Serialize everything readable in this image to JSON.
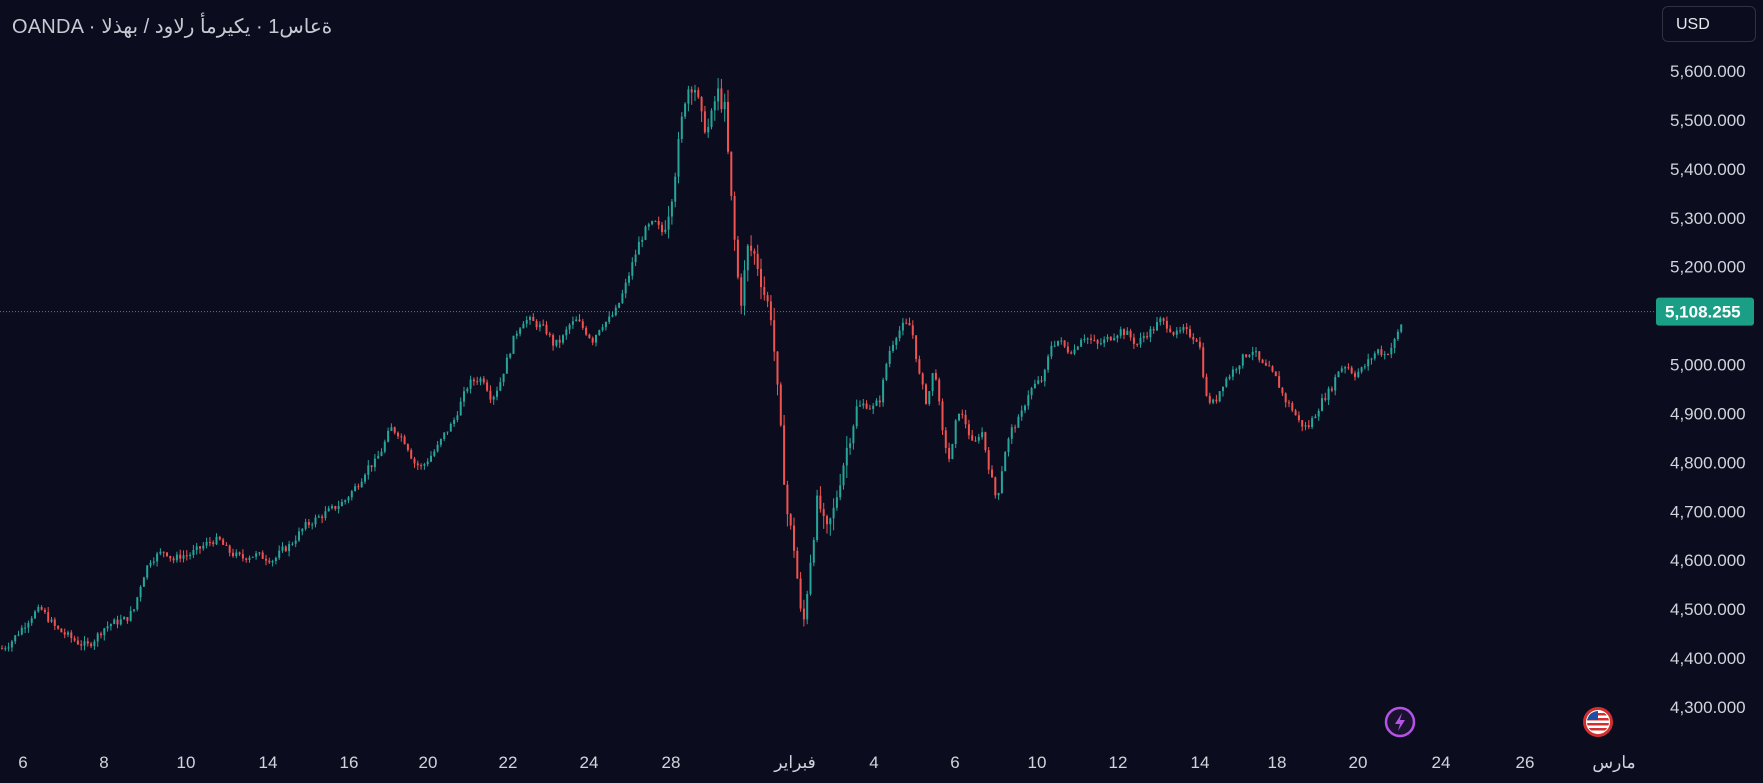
{
  "header": {
    "symbol_line": "OANDA · ةعاس1 · يكيرمأ رلاود / بهذلا"
  },
  "currency_button": {
    "label": "USD"
  },
  "icons": {
    "lightning": "lightning-icon",
    "flag": "us-flag-icon"
  },
  "colors": {
    "background": "#0c0c1f",
    "up": "#26a69a",
    "down": "#ef5350",
    "price_tag": "#1b9e86"
  },
  "chart_data": {
    "type": "candlestick",
    "title": "",
    "ylim": [
      4250,
      5650
    ],
    "y_ticks": [
      {
        "value": 5600,
        "label": "5,600.000"
      },
      {
        "value": 5500,
        "label": "5,500.000"
      },
      {
        "value": 5400,
        "label": "5,400.000"
      },
      {
        "value": 5300,
        "label": "5,300.000"
      },
      {
        "value": 5200,
        "label": "5,200.000"
      },
      {
        "value": 5000,
        "label": "5,000.000"
      },
      {
        "value": 4900,
        "label": "4,900.000"
      },
      {
        "value": 4800,
        "label": "4,800.000"
      },
      {
        "value": 4700,
        "label": "4,700.000"
      },
      {
        "value": 4600,
        "label": "4,600.000"
      },
      {
        "value": 4500,
        "label": "4,500.000"
      },
      {
        "value": 4400,
        "label": "4,400.000"
      },
      {
        "value": 4300,
        "label": "4,300.000"
      }
    ],
    "x_ticks": [
      "6",
      "8",
      "10",
      "14",
      "16",
      "20",
      "22",
      "24",
      "28",
      "فبراير",
      "4",
      "6",
      "10",
      "12",
      "14",
      "18",
      "20",
      "24",
      "26",
      "مارس"
    ],
    "last_price": {
      "value": 5108.255,
      "label": "5,108.255"
    },
    "grid": false,
    "price_path": [
      [
        0,
        4420
      ],
      [
        10,
        4430
      ],
      [
        20,
        4450
      ],
      [
        30,
        4470
      ],
      [
        40,
        4490
      ],
      [
        50,
        4500
      ],
      [
        60,
        4480
      ],
      [
        70,
        4460
      ],
      [
        80,
        4450
      ],
      [
        90,
        4440
      ],
      [
        100,
        4430
      ],
      [
        110,
        4425
      ],
      [
        120,
        4440
      ],
      [
        130,
        4460
      ],
      [
        140,
        4470
      ],
      [
        150,
        4475
      ],
      [
        160,
        4480
      ],
      [
        170,
        4500
      ],
      [
        180,
        4560
      ],
      [
        190,
        4600
      ],
      [
        200,
        4610
      ],
      [
        210,
        4620
      ],
      [
        220,
        4600
      ],
      [
        230,
        4610
      ],
      [
        240,
        4610
      ],
      [
        250,
        4620
      ],
      [
        260,
        4630
      ],
      [
        270,
        4640
      ],
      [
        280,
        4640
      ],
      [
        290,
        4620
      ],
      [
        300,
        4610
      ],
      [
        310,
        4605
      ],
      [
        320,
        4610
      ],
      [
        330,
        4610
      ],
      [
        340,
        4605
      ],
      [
        350,
        4600
      ],
      [
        360,
        4620
      ],
      [
        370,
        4630
      ],
      [
        380,
        4650
      ],
      [
        390,
        4670
      ],
      [
        400,
        4680
      ],
      [
        410,
        4690
      ],
      [
        420,
        4700
      ],
      [
        430,
        4710
      ],
      [
        440,
        4720
      ],
      [
        450,
        4740
      ],
      [
        460,
        4760
      ],
      [
        470,
        4790
      ],
      [
        480,
        4800
      ],
      [
        490,
        4830
      ],
      [
        500,
        4870
      ],
      [
        510,
        4860
      ],
      [
        520,
        4840
      ],
      [
        530,
        4800
      ],
      [
        540,
        4790
      ],
      [
        550,
        4810
      ],
      [
        560,
        4830
      ],
      [
        570,
        4860
      ],
      [
        580,
        4880
      ],
      [
        590,
        4920
      ],
      [
        600,
        4960
      ],
      [
        610,
        4970
      ],
      [
        620,
        4970
      ],
      [
        630,
        4930
      ],
      [
        640,
        4960
      ],
      [
        650,
        5010
      ],
      [
        660,
        5060
      ],
      [
        670,
        5090
      ],
      [
        680,
        5090
      ],
      [
        690,
        5080
      ],
      [
        700,
        5070
      ],
      [
        710,
        5040
      ],
      [
        720,
        5050
      ],
      [
        730,
        5080
      ],
      [
        740,
        5090
      ],
      [
        750,
        5070
      ],
      [
        760,
        5050
      ],
      [
        770,
        5080
      ],
      [
        780,
        5090
      ],
      [
        790,
        5110
      ],
      [
        800,
        5150
      ],
      [
        810,
        5200
      ],
      [
        820,
        5250
      ],
      [
        830,
        5280
      ],
      [
        840,
        5290
      ],
      [
        850,
        5270
      ],
      [
        860,
        5330
      ],
      [
        870,
        5440
      ],
      [
        880,
        5560
      ],
      [
        890,
        5580
      ],
      [
        900,
        5500
      ],
      [
        910,
        5480
      ],
      [
        920,
        5560
      ],
      [
        930,
        5520
      ],
      [
        940,
        5300
      ],
      [
        950,
        5120
      ],
      [
        960,
        5240
      ],
      [
        970,
        5220
      ],
      [
        980,
        5150
      ],
      [
        990,
        5100
      ],
      [
        1000,
        4900
      ],
      [
        1010,
        4700
      ],
      [
        1020,
        4620
      ],
      [
        1030,
        4450
      ],
      [
        1040,
        4600
      ],
      [
        1050,
        4730
      ],
      [
        1060,
        4650
      ],
      [
        1070,
        4700
      ],
      [
        1080,
        4780
      ],
      [
        1090,
        4850
      ],
      [
        1100,
        4910
      ],
      [
        1110,
        4920
      ],
      [
        1120,
        4910
      ],
      [
        1130,
        4930
      ],
      [
        1140,
        5020
      ],
      [
        1150,
        5060
      ],
      [
        1160,
        5080
      ],
      [
        1170,
        5080
      ],
      [
        1180,
        4980
      ],
      [
        1190,
        4920
      ],
      [
        1200,
        5000
      ],
      [
        1210,
        4860
      ],
      [
        1220,
        4800
      ],
      [
        1230,
        4910
      ],
      [
        1240,
        4880
      ],
      [
        1250,
        4830
      ],
      [
        1260,
        4870
      ],
      [
        1270,
        4790
      ],
      [
        1280,
        4720
      ],
      [
        1290,
        4820
      ],
      [
        1300,
        4870
      ],
      [
        1310,
        4890
      ],
      [
        1320,
        4940
      ],
      [
        1330,
        4960
      ],
      [
        1340,
        4970
      ],
      [
        1350,
        5040
      ],
      [
        1360,
        5050
      ],
      [
        1370,
        5030
      ],
      [
        1380,
        5030
      ],
      [
        1390,
        5060
      ],
      [
        1400,
        5050
      ],
      [
        1410,
        5040
      ],
      [
        1420,
        5050
      ],
      [
        1430,
        5060
      ],
      [
        1440,
        5070
      ],
      [
        1450,
        5060
      ],
      [
        1460,
        5040
      ],
      [
        1470,
        5060
      ],
      [
        1480,
        5070
      ],
      [
        1490,
        5090
      ],
      [
        1500,
        5080
      ],
      [
        1510,
        5060
      ],
      [
        1520,
        5070
      ],
      [
        1530,
        5060
      ],
      [
        1540,
        5050
      ],
      [
        1550,
        4930
      ],
      [
        1560,
        4920
      ],
      [
        1570,
        4960
      ],
      [
        1580,
        4980
      ],
      [
        1590,
        5000
      ],
      [
        1600,
        5020
      ],
      [
        1610,
        5030
      ],
      [
        1620,
        5000
      ],
      [
        1630,
        4990
      ],
      [
        1640,
        4970
      ],
      [
        1650,
        4930
      ],
      [
        1660,
        4910
      ],
      [
        1670,
        4880
      ],
      [
        1680,
        4870
      ],
      [
        1690,
        4900
      ],
      [
        1700,
        4930
      ],
      [
        1710,
        4950
      ],
      [
        1720,
        4990
      ],
      [
        1730,
        5000
      ],
      [
        1740,
        4980
      ],
      [
        1750,
        4990
      ],
      [
        1760,
        5010
      ],
      [
        1770,
        5030
      ],
      [
        1780,
        5020
      ],
      [
        1790,
        5040
      ],
      [
        1800,
        5080
      ],
      [
        1804,
        5108
      ]
    ]
  }
}
